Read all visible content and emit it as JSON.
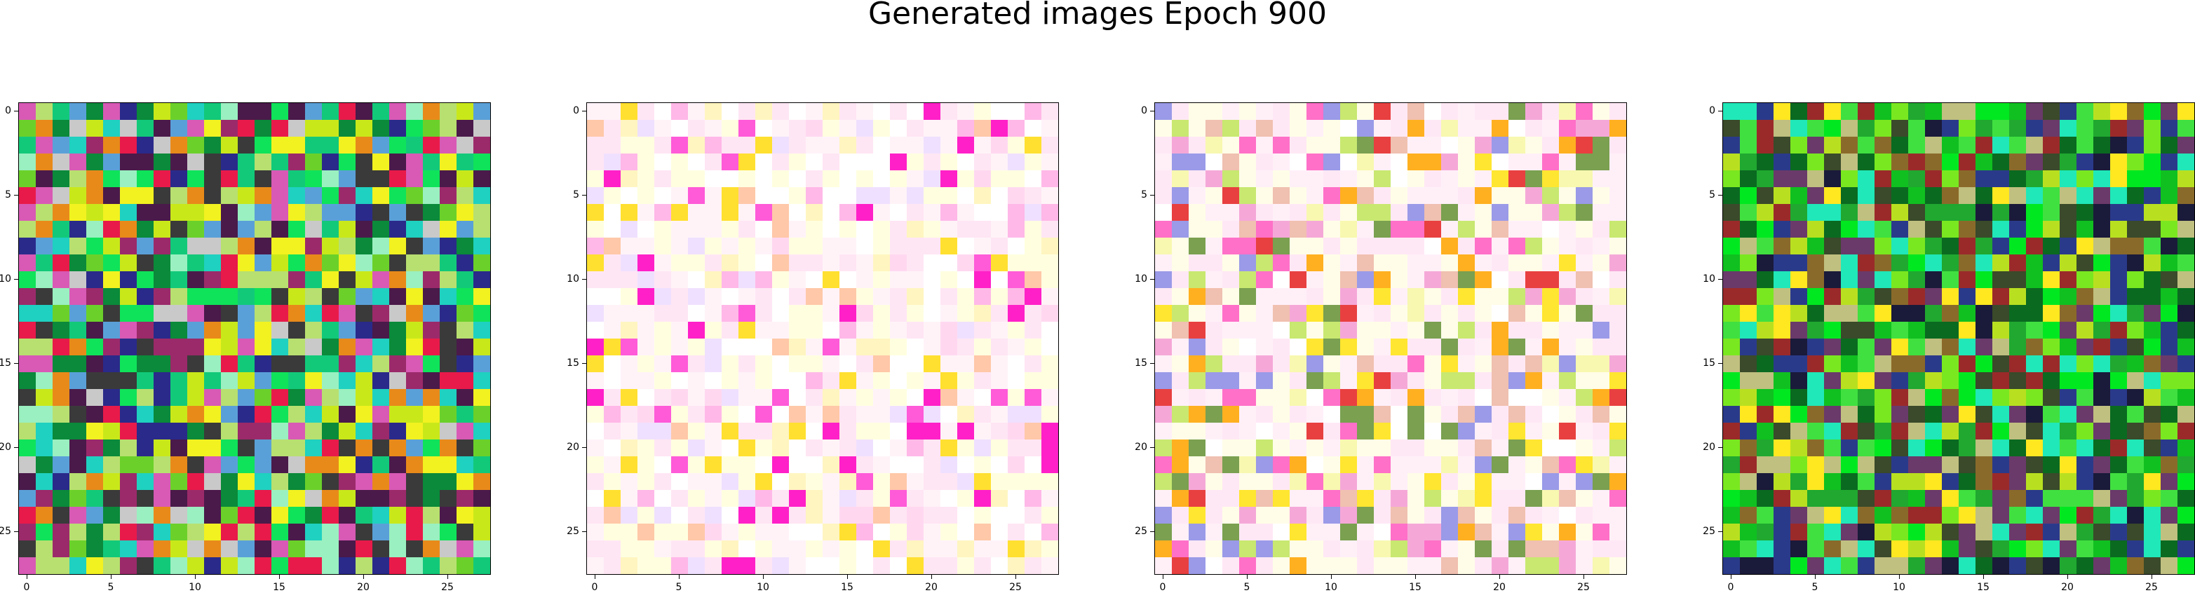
{
  "figure": {
    "title": "Generated images Epoch 900",
    "tick_labels": [
      "0",
      "5",
      "10",
      "15",
      "20",
      "25"
    ]
  },
  "panels": [
    {
      "name": "image-1",
      "palette": [
        "#0fe35a",
        "#12c97a",
        "#1fd1c0",
        "#0a8a3a",
        "#2a2a8a",
        "#6bd12a",
        "#c9e81a",
        "#f2f220",
        "#9b2a6a",
        "#4a1a4a",
        "#d85ab5",
        "#c9c9c9",
        "#e88a1a",
        "#e81a4a",
        "#9af0c0",
        "#3a3a3a",
        "#b8e070",
        "#5aa0d8"
      ],
      "tone": "mixed"
    },
    {
      "name": "image-2",
      "palette": [
        "#ffffff",
        "#fff3f8",
        "#ffe6f4",
        "#ffffe0",
        "#fff5c0",
        "#ffd8f0",
        "#ffb8e8",
        "#ff5ad8",
        "#ffe030",
        "#ffc8a8",
        "#f0e0ff",
        "#ff20c8"
      ],
      "tone": "light"
    },
    {
      "name": "image-3",
      "palette": [
        "#fffde8",
        "#fff0f8",
        "#ffe8f5",
        "#f8f8b0",
        "#ffe630",
        "#ffb020",
        "#f5a8d8",
        "#ff70c8",
        "#e84040",
        "#c8e870",
        "#9a9ae8",
        "#f0c0b0",
        "#ffffff",
        "#7aa050"
      ],
      "tone": "warm"
    },
    {
      "name": "image-4",
      "palette": [
        "#00e820",
        "#10c020",
        "#20a830",
        "#40e040",
        "#7ae820",
        "#b8e020",
        "#ffe820",
        "#0a6a20",
        "#1a1a3a",
        "#6a3a6a",
        "#2a3a8a",
        "#8a6a2a",
        "#20e8b8",
        "#c0c080",
        "#9a2a2a",
        "#3a4a2a"
      ],
      "tone": "green"
    }
  ]
}
